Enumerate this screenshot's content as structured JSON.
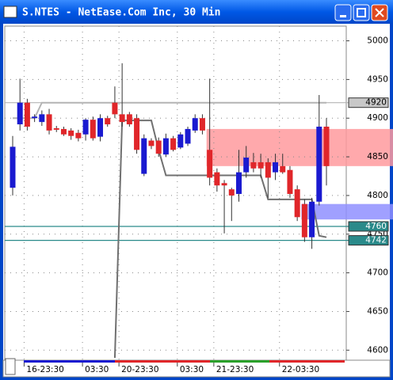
{
  "chart_data": {
    "type": "candlestick",
    "title": "S.NTES - NetEase.Com Inc, 30 Min",
    "categories": [
      null,
      null,
      "16-23:30",
      null,
      null,
      null,
      null,
      null,
      null,
      null,
      "03:30",
      null,
      null,
      null,
      null,
      "20-23:30",
      null,
      null,
      null,
      null,
      null,
      null,
      null,
      "03:30",
      null,
      null,
      null,
      null,
      "21-23:30",
      null,
      null,
      null,
      null,
      null,
      null,
      null,
      null,
      "22-03:30",
      null,
      null,
      null,
      null,
      null,
      null
    ],
    "open": [
      4810,
      4892,
      4920,
      4900,
      4895,
      4905,
      4887,
      4886,
      4884,
      4881,
      4879,
      4898,
      4876,
      4900,
      4920,
      4905,
      4905,
      4900,
      4828,
      4871,
      4871,
      4853,
      4874,
      4862,
      4867,
      4884,
      4900,
      4859,
      4830,
      4816,
      4808,
      4802,
      4830,
      4843,
      4843,
      4843,
      4830,
      4838,
      4833,
      4808,
      4789,
      4746,
      4792,
      4889
    ],
    "high": [
      4877,
      4951,
      4925,
      4905,
      4910,
      4912,
      4890,
      4889,
      4887,
      4885,
      4900,
      4902,
      4905,
      4903,
      4941,
      4971,
      4908,
      4905,
      4879,
      4874,
      4875,
      4880,
      4877,
      4882,
      4889,
      4905,
      4905,
      4951,
      4835,
      4820,
      4810,
      4859,
      4864,
      4855,
      4854,
      4848,
      4854,
      4854,
      4838,
      4813,
      4795,
      4797,
      4930,
      4900
    ],
    "low": [
      4800,
      4884,
      4884,
      4895,
      4890,
      4879,
      4882,
      4877,
      4872,
      4870,
      4871,
      4871,
      4870,
      4889,
      4900,
      4889,
      4889,
      4854,
      4825,
      4860,
      4850,
      4850,
      4857,
      4860,
      4864,
      4881,
      4879,
      4813,
      4805,
      4751,
      4767,
      4792,
      4823,
      4830,
      4823,
      4797,
      4820,
      4828,
      4797,
      4767,
      4740,
      4731,
      4787,
      4813
    ],
    "close": [
      4863,
      4920,
      4889,
      4902,
      4905,
      4884,
      4885,
      4879,
      4877,
      4874,
      4898,
      4874,
      4900,
      4892,
      4905,
      4895,
      4892,
      4859,
      4874,
      4864,
      4854,
      4874,
      4859,
      4879,
      4886,
      4900,
      4884,
      4823,
      4813,
      4813,
      4800,
      4830,
      4849,
      4835,
      4835,
      4823,
      4843,
      4830,
      4802,
      4772,
      4746,
      4792,
      4889,
      4838
    ],
    "up_color": "#1a1ad0",
    "down_color": "#e0262a",
    "series": [
      {
        "color": "#b4b4b4",
        "values": [
          4900,
          4900,
          4900,
          4900,
          4920,
          4920,
          4920,
          4920,
          4920,
          4920,
          4920,
          4920,
          4920,
          4920,
          4920,
          4920,
          4920,
          4920,
          4920,
          4920,
          4920,
          4920,
          4920,
          4920,
          4920,
          4920,
          4920,
          4920,
          4920,
          4920,
          4920,
          4920,
          4920,
          4920,
          4920,
          4920,
          4920,
          4920,
          4920,
          4920,
          4920,
          4920,
          4920,
          4920
        ]
      },
      {
        "color": "#707070",
        "values": [
          null,
          null,
          null,
          null,
          null,
          null,
          null,
          null,
          null,
          null,
          null,
          null,
          null,
          null,
          4590,
          4897,
          4897,
          4897,
          4897,
          4897,
          4859,
          4826,
          4826,
          4826,
          4826,
          4826,
          4826,
          4826,
          4826,
          4826,
          4826,
          4826,
          4826,
          4826,
          4826,
          4795,
          4795,
          4795,
          4795,
          4795,
          4795,
          4795,
          4748,
          4746
        ]
      }
    ],
    "bands": [
      {
        "from": 4886,
        "to": 4838,
        "start": 27,
        "color": "#ff9a9e"
      },
      {
        "from": 4789,
        "to": 4769,
        "start": 40,
        "color": "#8f8fff"
      }
    ],
    "hlines": [
      {
        "value": 4920,
        "label": "4920",
        "color": "#b4b4b4",
        "label_bg": "#c8c8c8"
      },
      {
        "value": 4760,
        "label": "4760",
        "color": "#2a8a8a",
        "label_bg": "#2a8a8a"
      },
      {
        "value": 4742,
        "label": "4742",
        "color": "#2a8a8a",
        "label_bg": "#2a8a8a"
      }
    ],
    "ylim": [
      4587,
      5019
    ],
    "yticks": [
      4600,
      4650,
      4700,
      4750,
      4800,
      4850,
      4900,
      4950,
      5000
    ],
    "grid": true
  }
}
